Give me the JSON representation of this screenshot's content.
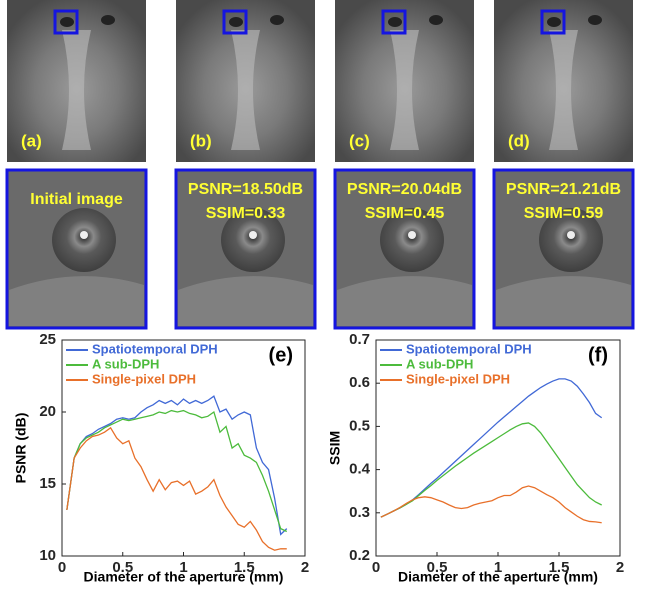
{
  "panels": {
    "top_labels": [
      "(a)",
      "(b)",
      "(c)",
      "(d)"
    ],
    "crops": [
      {
        "lines": [
          "Initial image"
        ]
      },
      {
        "lines": [
          "PSNR=18.50dB",
          "SSIM=0.33"
        ]
      },
      {
        "lines": [
          "PSNR=20.04dB",
          "SSIM=0.45"
        ]
      },
      {
        "lines": [
          "PSNR=21.21dB",
          "SSIM=0.59"
        ]
      }
    ]
  },
  "chart_data": [
    {
      "type": "line",
      "panel_label": "(e)",
      "xlabel": "Diameter of the aperture (mm)",
      "ylabel": "PSNR (dB)",
      "xlim": [
        0,
        2
      ],
      "xticks": [
        0,
        0.5,
        1,
        1.5,
        2
      ],
      "ylim": [
        10,
        25
      ],
      "yticks": [
        10,
        15,
        20,
        25
      ],
      "legend": "upper left",
      "x": [
        0.04,
        0.1,
        0.15,
        0.2,
        0.25,
        0.3,
        0.35,
        0.4,
        0.45,
        0.5,
        0.55,
        0.6,
        0.65,
        0.7,
        0.75,
        0.8,
        0.85,
        0.9,
        0.95,
        1.0,
        1.05,
        1.1,
        1.15,
        1.2,
        1.25,
        1.3,
        1.35,
        1.4,
        1.45,
        1.5,
        1.55,
        1.6,
        1.65,
        1.7,
        1.75,
        1.8,
        1.85
      ],
      "series": [
        {
          "name": "Spatiotemporal DPH",
          "color": "#4169d6",
          "values": [
            13.2,
            16.8,
            17.8,
            18.3,
            18.5,
            18.8,
            19.0,
            19.2,
            19.5,
            19.6,
            19.5,
            19.6,
            20.0,
            20.3,
            20.5,
            20.8,
            20.6,
            20.8,
            20.5,
            20.9,
            20.6,
            20.8,
            20.6,
            20.8,
            21.1,
            20.0,
            20.2,
            19.5,
            19.8,
            20.0,
            19.8,
            17.5,
            16.5,
            16.0,
            14.0,
            11.5,
            11.9
          ]
        },
        {
          "name": "A sub-DPH",
          "color": "#4cbb3c",
          "values": [
            13.2,
            16.8,
            17.8,
            18.2,
            18.4,
            18.6,
            18.9,
            19.1,
            19.3,
            19.5,
            19.4,
            19.5,
            19.6,
            19.7,
            19.8,
            20.0,
            19.9,
            20.1,
            20.0,
            20.1,
            19.9,
            19.8,
            19.6,
            19.7,
            20.0,
            18.6,
            19.0,
            17.5,
            17.8,
            17.0,
            16.8,
            16.5,
            15.6,
            14.5,
            13.2,
            11.9,
            11.7
          ]
        },
        {
          "name": "Single-pixel DPH",
          "color": "#e8702a",
          "values": [
            13.2,
            16.8,
            17.5,
            18.0,
            18.3,
            18.4,
            18.6,
            18.9,
            18.2,
            17.8,
            18.0,
            16.8,
            16.2,
            15.3,
            14.5,
            15.3,
            14.6,
            15.1,
            15.2,
            14.9,
            15.2,
            14.3,
            14.5,
            14.8,
            15.3,
            14.2,
            13.4,
            12.8,
            12.2,
            12.0,
            12.4,
            11.8,
            11.0,
            10.6,
            10.4,
            10.5,
            10.5
          ]
        }
      ]
    },
    {
      "type": "line",
      "panel_label": "(f)",
      "xlabel": "Diameter of the aperture (mm)",
      "ylabel": "SSIM",
      "xlim": [
        0,
        2
      ],
      "xticks": [
        0,
        0.5,
        1,
        1.5,
        2
      ],
      "ylim": [
        0.2,
        0.7
      ],
      "yticks": [
        0.2,
        0.3,
        0.4,
        0.5,
        0.6,
        0.7
      ],
      "legend": "upper left",
      "x": [
        0.04,
        0.1,
        0.15,
        0.2,
        0.25,
        0.3,
        0.35,
        0.4,
        0.45,
        0.5,
        0.55,
        0.6,
        0.65,
        0.7,
        0.75,
        0.8,
        0.85,
        0.9,
        0.95,
        1.0,
        1.05,
        1.1,
        1.15,
        1.2,
        1.25,
        1.3,
        1.35,
        1.4,
        1.45,
        1.5,
        1.55,
        1.6,
        1.65,
        1.7,
        1.75,
        1.8,
        1.85
      ],
      "series": [
        {
          "name": "Spatiotemporal DPH",
          "color": "#4169d6",
          "values": [
            0.29,
            0.298,
            0.305,
            0.312,
            0.32,
            0.33,
            0.342,
            0.355,
            0.368,
            0.38,
            0.393,
            0.406,
            0.419,
            0.432,
            0.445,
            0.458,
            0.471,
            0.484,
            0.497,
            0.51,
            0.522,
            0.534,
            0.546,
            0.558,
            0.57,
            0.58,
            0.59,
            0.598,
            0.605,
            0.61,
            0.61,
            0.605,
            0.593,
            0.575,
            0.555,
            0.53,
            0.52
          ]
        },
        {
          "name": "A sub-DPH",
          "color": "#4cbb3c",
          "values": [
            0.29,
            0.298,
            0.305,
            0.312,
            0.32,
            0.328,
            0.34,
            0.352,
            0.363,
            0.375,
            0.386,
            0.397,
            0.408,
            0.418,
            0.428,
            0.438,
            0.447,
            0.456,
            0.465,
            0.474,
            0.483,
            0.492,
            0.5,
            0.506,
            0.508,
            0.5,
            0.485,
            0.465,
            0.445,
            0.425,
            0.405,
            0.385,
            0.365,
            0.35,
            0.335,
            0.325,
            0.318
          ]
        },
        {
          "name": "Single-pixel DPH",
          "color": "#e8702a",
          "values": [
            0.29,
            0.298,
            0.305,
            0.313,
            0.322,
            0.33,
            0.335,
            0.337,
            0.335,
            0.33,
            0.325,
            0.318,
            0.312,
            0.31,
            0.312,
            0.318,
            0.322,
            0.325,
            0.328,
            0.335,
            0.34,
            0.34,
            0.348,
            0.358,
            0.362,
            0.358,
            0.35,
            0.342,
            0.335,
            0.325,
            0.312,
            0.302,
            0.292,
            0.284,
            0.28,
            0.279,
            0.277
          ]
        }
      ]
    }
  ]
}
